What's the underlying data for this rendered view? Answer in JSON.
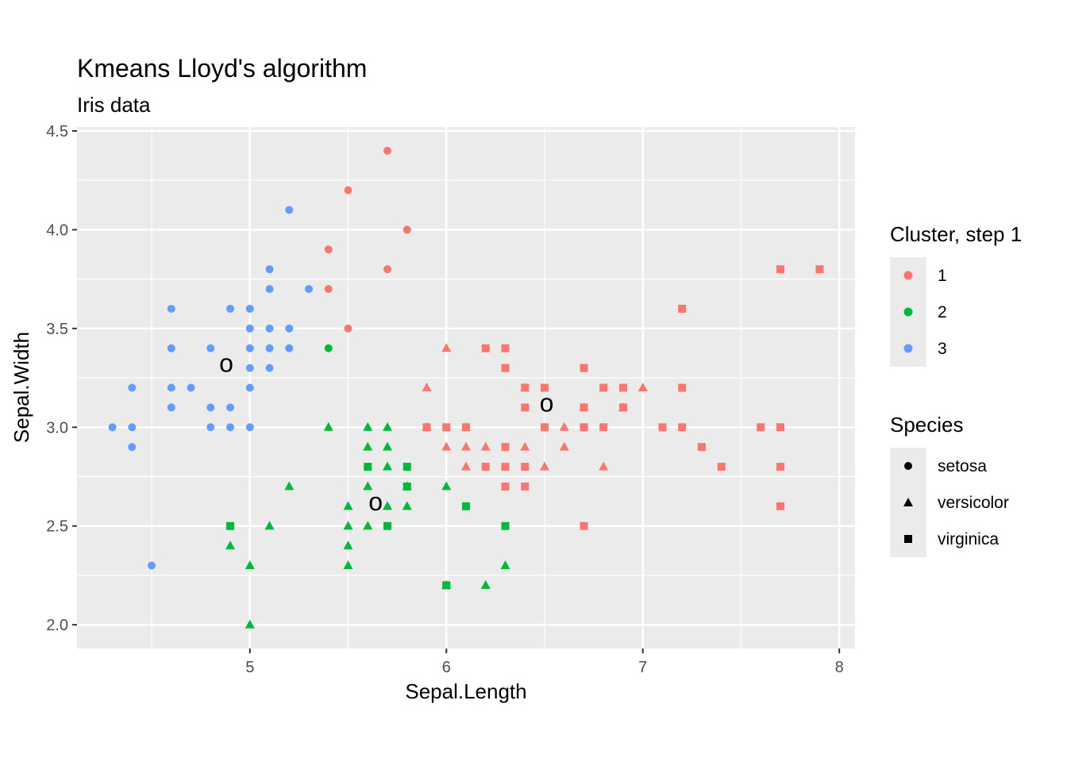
{
  "chart_data": {
    "type": "scatter",
    "title": "Kmeans Lloyd's algorithm",
    "subtitle": "Iris data",
    "xlabel": "Sepal.Length",
    "ylabel": "Sepal.Width",
    "xlim": [
      4.12,
      8.08
    ],
    "ylim": [
      1.88,
      4.52
    ],
    "x_ticks": [
      5,
      6,
      7,
      8
    ],
    "x_tick_labels": [
      "5",
      "6",
      "7",
      "8"
    ],
    "y_ticks": [
      2.0,
      2.5,
      3.0,
      3.5,
      4.0,
      4.5
    ],
    "y_tick_labels": [
      "2.0",
      "2.5",
      "3.0",
      "3.5",
      "4.0",
      "4.5"
    ],
    "grid": true,
    "legend_position": "right",
    "colors": {
      "1": "#F8766D",
      "2": "#00BA38",
      "3": "#619CFF"
    },
    "panel_background": "#EBEBEB",
    "legends": [
      {
        "title": "Cluster, step  1",
        "entries": [
          {
            "label": "1",
            "color": "#F8766D",
            "shape": "circle"
          },
          {
            "label": "2",
            "color": "#00BA38",
            "shape": "circle"
          },
          {
            "label": "3",
            "color": "#619CFF",
            "shape": "circle"
          }
        ]
      },
      {
        "title": "Species",
        "entries": [
          {
            "label": "setosa",
            "color": "#000000",
            "shape": "circle"
          },
          {
            "label": "versicolor",
            "color": "#000000",
            "shape": "triangle"
          },
          {
            "label": "virginica",
            "color": "#000000",
            "shape": "square"
          }
        ]
      }
    ],
    "centroids": [
      {
        "x": 4.88,
        "y": 3.32,
        "label": "o"
      },
      {
        "x": 5.64,
        "y": 2.62,
        "label": "o"
      },
      {
        "x": 6.51,
        "y": 3.12,
        "label": "o"
      }
    ],
    "series": [
      {
        "name": "1",
        "species": "setosa",
        "color": "#F8766D",
        "shape": "circle",
        "points": [
          [
            5.7,
            4.4
          ],
          [
            5.5,
            4.2
          ],
          [
            5.8,
            4.0
          ],
          [
            5.4,
            3.9
          ],
          [
            5.7,
            3.8
          ],
          [
            5.4,
            3.7
          ],
          [
            5.5,
            3.5
          ]
        ]
      },
      {
        "name": "3",
        "species": "setosa",
        "color": "#619CFF",
        "shape": "circle",
        "points": [
          [
            5.2,
            4.1
          ],
          [
            5.1,
            3.8
          ],
          [
            5.1,
            3.7
          ],
          [
            5.3,
            3.7
          ],
          [
            4.6,
            3.6
          ],
          [
            4.9,
            3.6
          ],
          [
            5.0,
            3.6
          ],
          [
            5.0,
            3.5
          ],
          [
            5.1,
            3.5
          ],
          [
            5.2,
            3.5
          ],
          [
            4.6,
            3.4
          ],
          [
            4.8,
            3.4
          ],
          [
            5.0,
            3.4
          ],
          [
            5.1,
            3.4
          ],
          [
            5.2,
            3.4
          ],
          [
            5.0,
            3.3
          ],
          [
            5.1,
            3.3
          ],
          [
            4.4,
            3.2
          ],
          [
            4.6,
            3.2
          ],
          [
            4.7,
            3.2
          ],
          [
            5.0,
            3.2
          ],
          [
            4.6,
            3.1
          ],
          [
            4.8,
            3.1
          ],
          [
            4.9,
            3.1
          ],
          [
            4.3,
            3.0
          ],
          [
            4.4,
            3.0
          ],
          [
            4.8,
            3.0
          ],
          [
            4.9,
            3.0
          ],
          [
            5.0,
            3.0
          ],
          [
            4.4,
            2.9
          ],
          [
            4.5,
            2.3
          ]
        ]
      },
      {
        "name": "2",
        "species": "setosa",
        "color": "#00BA38",
        "shape": "circle",
        "points": [
          [
            5.4,
            3.4
          ]
        ]
      },
      {
        "name": "2",
        "species": "versicolor",
        "color": "#00BA38",
        "shape": "triangle",
        "points": [
          [
            5.4,
            3.0
          ],
          [
            5.6,
            3.0
          ],
          [
            5.7,
            3.0
          ],
          [
            5.6,
            2.9
          ],
          [
            5.7,
            2.9
          ],
          [
            5.7,
            2.8
          ],
          [
            5.2,
            2.7
          ],
          [
            5.6,
            2.7
          ],
          [
            5.8,
            2.7
          ],
          [
            6.0,
            2.7
          ],
          [
            5.5,
            2.6
          ],
          [
            5.7,
            2.6
          ],
          [
            5.8,
            2.6
          ],
          [
            5.1,
            2.5
          ],
          [
            5.5,
            2.5
          ],
          [
            5.6,
            2.5
          ],
          [
            4.9,
            2.4
          ],
          [
            5.5,
            2.4
          ],
          [
            5.0,
            2.3
          ],
          [
            5.5,
            2.3
          ],
          [
            6.3,
            2.3
          ],
          [
            6.0,
            2.2
          ],
          [
            6.2,
            2.2
          ],
          [
            5.0,
            2.0
          ]
        ]
      },
      {
        "name": "2",
        "species": "virginica",
        "color": "#00BA38",
        "shape": "square",
        "points": [
          [
            5.6,
            2.8
          ],
          [
            5.8,
            2.8
          ],
          [
            5.8,
            2.7
          ],
          [
            6.1,
            2.6
          ],
          [
            4.9,
            2.5
          ],
          [
            5.7,
            2.5
          ],
          [
            6.3,
            2.5
          ],
          [
            6.0,
            2.2
          ]
        ]
      },
      {
        "name": "1",
        "species": "versicolor",
        "color": "#F8766D",
        "shape": "triangle",
        "points": [
          [
            6.0,
            3.4
          ],
          [
            5.9,
            3.2
          ],
          [
            6.4,
            3.2
          ],
          [
            7.0,
            3.2
          ],
          [
            6.7,
            3.1
          ],
          [
            6.9,
            3.1
          ],
          [
            5.9,
            3.0
          ],
          [
            6.1,
            3.0
          ],
          [
            6.6,
            3.0
          ],
          [
            6.0,
            2.9
          ],
          [
            6.1,
            2.9
          ],
          [
            6.2,
            2.9
          ],
          [
            6.4,
            2.9
          ],
          [
            6.6,
            2.9
          ],
          [
            6.1,
            2.8
          ],
          [
            6.5,
            2.8
          ],
          [
            6.8,
            2.8
          ]
        ]
      },
      {
        "name": "1",
        "species": "virginica",
        "color": "#F8766D",
        "shape": "square",
        "points": [
          [
            7.7,
            3.8
          ],
          [
            7.9,
            3.8
          ],
          [
            7.2,
            3.6
          ],
          [
            6.2,
            3.4
          ],
          [
            6.3,
            3.4
          ],
          [
            6.3,
            3.3
          ],
          [
            6.7,
            3.3
          ],
          [
            6.4,
            3.2
          ],
          [
            6.5,
            3.2
          ],
          [
            6.8,
            3.2
          ],
          [
            6.9,
            3.2
          ],
          [
            7.2,
            3.2
          ],
          [
            6.4,
            3.1
          ],
          [
            6.7,
            3.1
          ],
          [
            6.9,
            3.1
          ],
          [
            5.9,
            3.0
          ],
          [
            6.0,
            3.0
          ],
          [
            6.1,
            3.0
          ],
          [
            6.5,
            3.0
          ],
          [
            6.7,
            3.0
          ],
          [
            6.8,
            3.0
          ],
          [
            7.1,
            3.0
          ],
          [
            7.2,
            3.0
          ],
          [
            7.6,
            3.0
          ],
          [
            7.7,
            3.0
          ],
          [
            6.3,
            2.9
          ],
          [
            7.3,
            2.9
          ],
          [
            6.2,
            2.8
          ],
          [
            6.3,
            2.8
          ],
          [
            6.4,
            2.8
          ],
          [
            7.4,
            2.8
          ],
          [
            7.7,
            2.8
          ],
          [
            6.3,
            2.7
          ],
          [
            6.4,
            2.7
          ],
          [
            7.7,
            2.6
          ],
          [
            6.7,
            2.5
          ]
        ]
      }
    ]
  }
}
